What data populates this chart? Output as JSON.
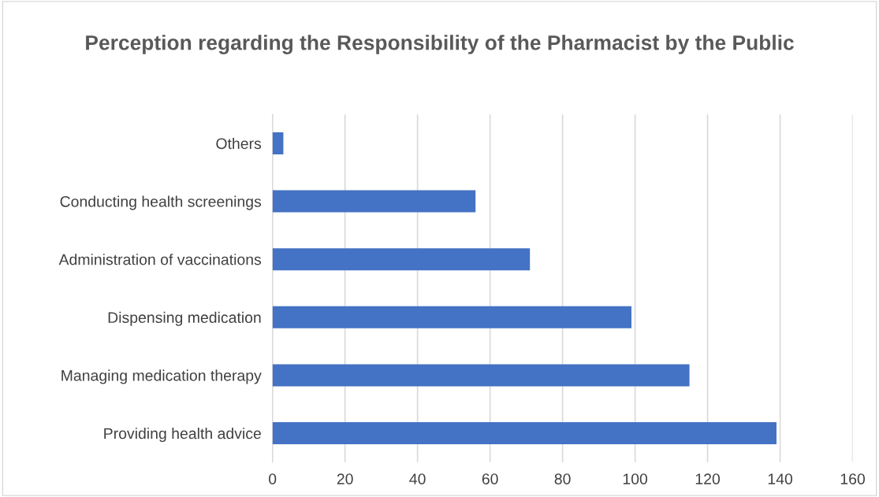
{
  "chart_data": {
    "type": "bar",
    "orientation": "horizontal",
    "title": "Perception regarding the Responsibility of the Pharmacist by the Public",
    "categories": [
      "Others",
      "Conducting health screenings",
      "Administration of vaccinations",
      "Dispensing medication",
      "Managing medication therapy",
      "Providing health advice"
    ],
    "values": [
      3,
      56,
      71,
      99,
      115,
      139
    ],
    "color": "#4472c4",
    "xlim": [
      0,
      160
    ],
    "xticks": [
      0,
      20,
      40,
      60,
      80,
      100,
      120,
      140,
      160
    ],
    "grid": "x"
  }
}
